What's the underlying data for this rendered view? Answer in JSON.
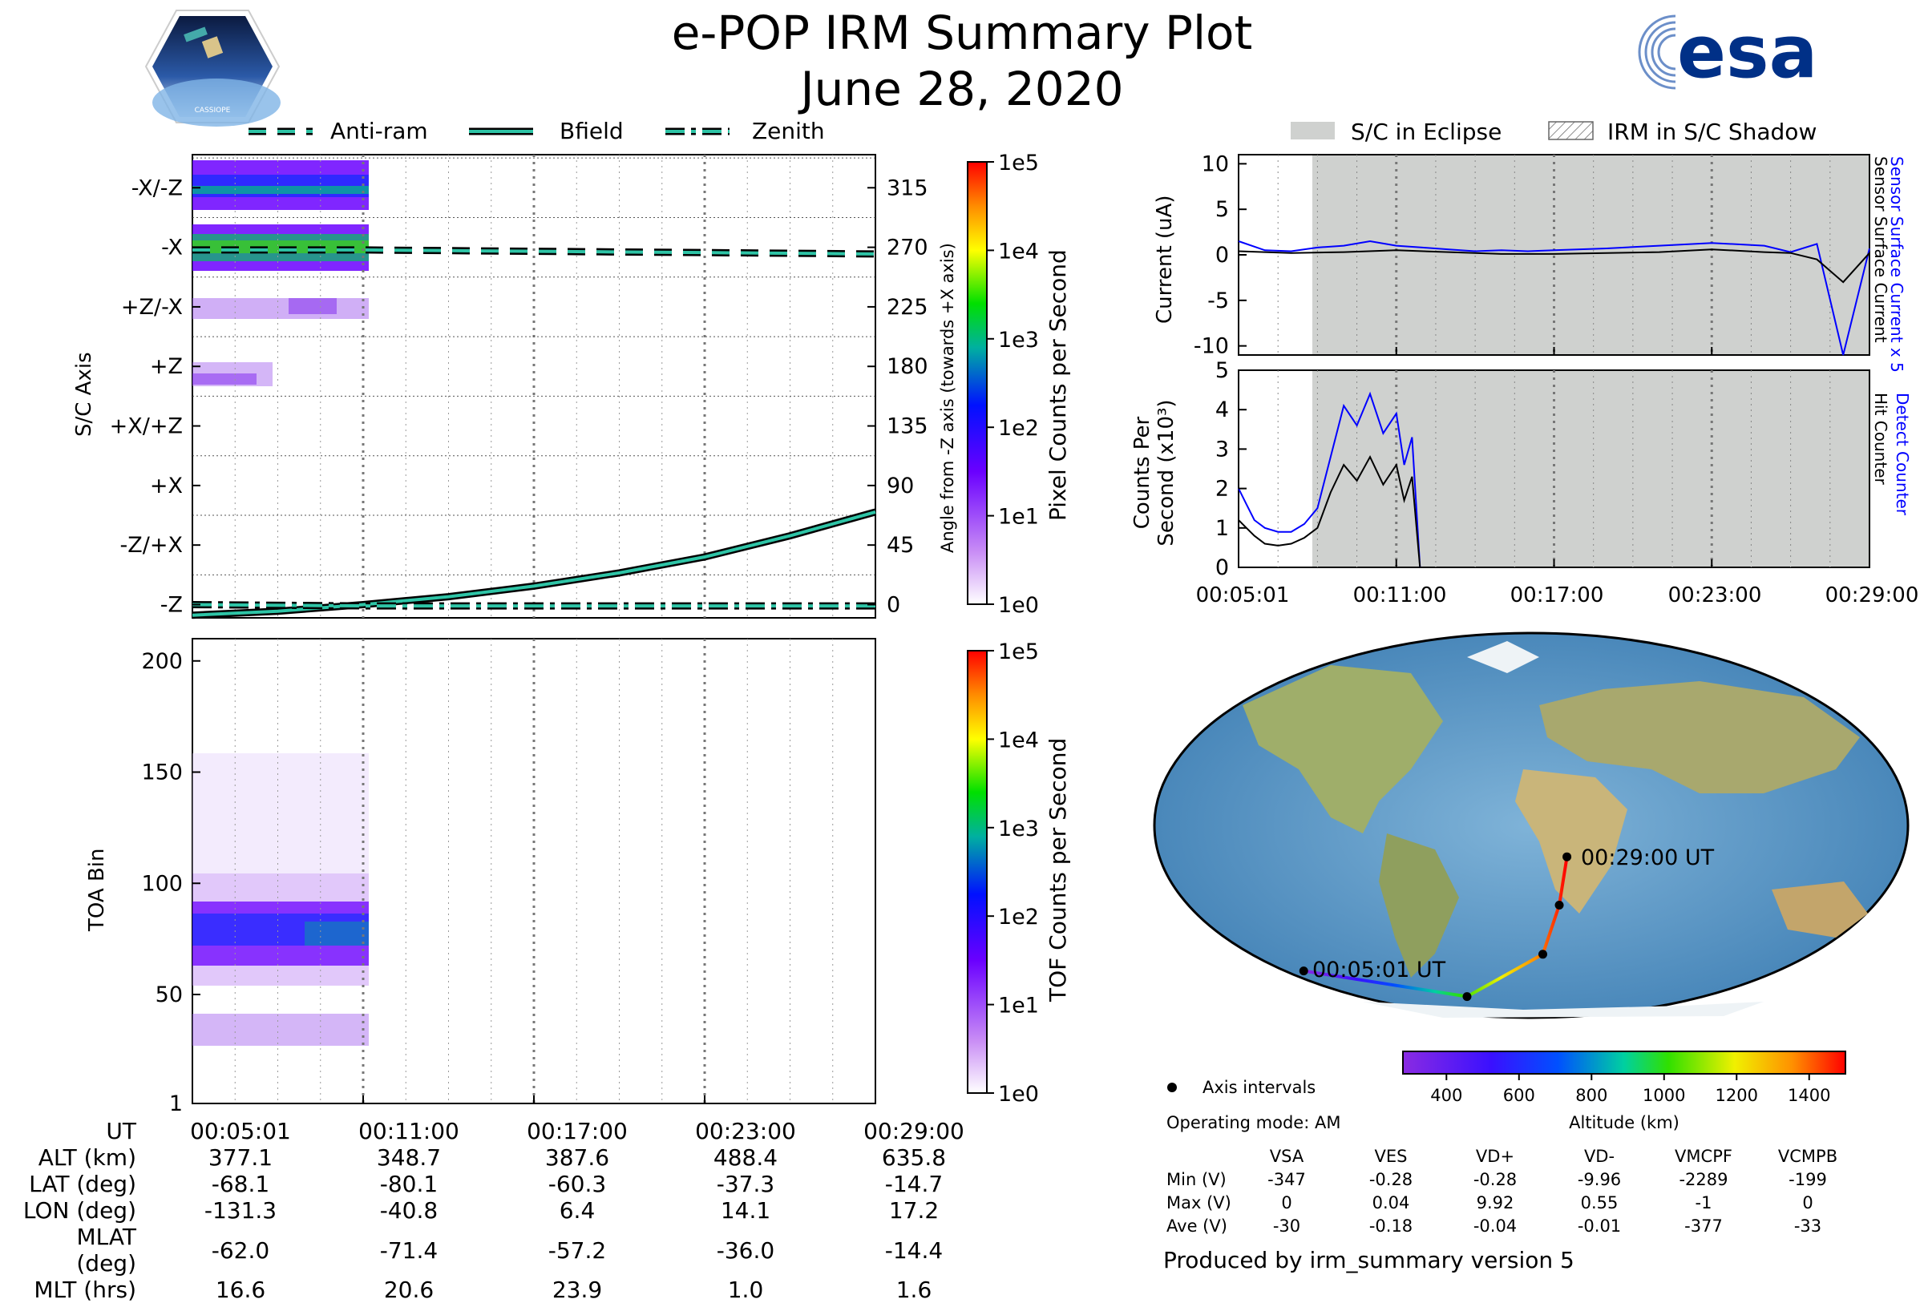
{
  "title": "e-POP IRM Summary Plot",
  "date": "June 28, 2020",
  "esa_logo_text": "esa",
  "cassiope_logo_text": "CASSIOPE",
  "chart_data": [
    {
      "id": "sc-axis",
      "type": "heatmap",
      "ylabel": "S/C Axis",
      "y_right_label": "Angle from -Z axis (towards +X axis)",
      "yticks_left": [
        "-X/-Z",
        "-X",
        "+Z/-X",
        "+Z",
        "+X/+Z",
        "+X",
        "-Z/+X",
        "-Z"
      ],
      "yticks_right": [
        "315",
        "270",
        "225",
        "180",
        "135",
        "90",
        "45",
        "0"
      ],
      "ylim": [
        -10,
        340
      ],
      "legend": [
        "Anti-ram",
        "Bfield",
        "Zenith"
      ],
      "colorbar_label": "Pixel Counts per Second",
      "colorbar_ticks": [
        "1e5",
        "1e4",
        "1e3",
        "1e2",
        "1e1",
        "1e0"
      ],
      "series": [
        {
          "name": "Anti-ram",
          "x_min": [
            0,
            6,
            12,
            18,
            24
          ],
          "values": [
            268,
            268,
            267,
            266,
            265
          ]
        },
        {
          "name": "Bfield",
          "x_min": [
            0,
            3,
            6,
            9,
            12,
            15,
            18,
            21,
            24
          ],
          "values": [
            -8,
            -5,
            0,
            6,
            14,
            24,
            36,
            52,
            70
          ]
        },
        {
          "name": "Zenith",
          "x_min": [
            0,
            6,
            12,
            18,
            24
          ],
          "values": [
            0,
            -1,
            -1,
            -1,
            -1
          ]
        }
      ]
    },
    {
      "id": "toa",
      "type": "heatmap",
      "ylabel": "TOA Bin",
      "yticks": [
        "200",
        "150",
        "100",
        "50",
        "1"
      ],
      "ylim": [
        1,
        210
      ],
      "colorbar_label": "TOF Counts per Second",
      "colorbar_ticks": [
        "1e5",
        "1e4",
        "1e3",
        "1e2",
        "1e1",
        "1e0"
      ]
    },
    {
      "id": "current",
      "type": "line",
      "ylabel": "Current (uA)",
      "yticks": [
        "10",
        "5",
        "0",
        "-5",
        "-10"
      ],
      "ylim": [
        -11,
        11
      ],
      "right_label_blue": "Sensor Surface Current x 5",
      "right_label_black": "Sensor Surface Current",
      "series": [
        {
          "name": "Sensor Surface Current x 5",
          "color": "#0000ff",
          "x_min": [
            0,
            1,
            2,
            3,
            4,
            5,
            6,
            7,
            8,
            9,
            10,
            11,
            12,
            14,
            16,
            18,
            20,
            21,
            22,
            23,
            24
          ],
          "values": [
            1.5,
            0.5,
            0.4,
            0.8,
            1.0,
            1.5,
            1.0,
            0.8,
            0.6,
            0.4,
            0.5,
            0.4,
            0.5,
            0.7,
            1.0,
            1.3,
            1.0,
            0.3,
            1.2,
            -11,
            0.7
          ]
        },
        {
          "name": "Sensor Surface Current",
          "color": "#000000",
          "x_min": [
            0,
            2,
            4,
            6,
            8,
            10,
            12,
            14,
            16,
            18,
            20,
            21,
            22,
            23,
            24
          ],
          "values": [
            0.4,
            0.2,
            0.3,
            0.5,
            0.3,
            0.1,
            0.1,
            0.2,
            0.3,
            0.6,
            0.3,
            0.2,
            -0.5,
            -3,
            0.2
          ]
        }
      ]
    },
    {
      "id": "counts",
      "type": "line",
      "ylabel": "Counts Per Second (x10³)",
      "yticks": [
        "5",
        "4",
        "3",
        "2",
        "1",
        "0"
      ],
      "ylim": [
        0,
        5
      ],
      "xticks": [
        "00:05:01",
        "00:11:00",
        "00:17:00",
        "00:23:00",
        "00:29:00"
      ],
      "right_label_blue": "Detect Counter",
      "right_label_black": "Hit Counter",
      "series": [
        {
          "name": "Detect Counter",
          "color": "#0000ff",
          "x_min": [
            0,
            0.3,
            0.6,
            1,
            1.5,
            2,
            2.5,
            3,
            3.5,
            4,
            4.5,
            5,
            5.5,
            6,
            6.3,
            6.6,
            6.9
          ],
          "values": [
            2.0,
            1.6,
            1.2,
            1.0,
            0.9,
            0.9,
            1.1,
            1.5,
            2.8,
            4.1,
            3.6,
            4.4,
            3.4,
            3.9,
            2.6,
            3.3,
            0
          ]
        },
        {
          "name": "Hit Counter",
          "color": "#000000",
          "x_min": [
            0,
            0.3,
            0.6,
            1,
            1.5,
            2,
            2.5,
            3,
            3.5,
            4,
            4.5,
            5,
            5.5,
            6,
            6.3,
            6.6,
            6.9
          ],
          "values": [
            1.2,
            1.0,
            0.8,
            0.6,
            0.55,
            0.6,
            0.75,
            1.0,
            1.9,
            2.6,
            2.2,
            2.8,
            2.1,
            2.6,
            1.7,
            2.3,
            0
          ]
        }
      ],
      "shaded_ranges_min": [
        [
          2.6,
          24
        ]
      ],
      "eclipse_legend": "S/C in Eclipse",
      "shadow_legend": "IRM in S/C Shadow"
    }
  ],
  "x_axis": {
    "ut_label": "UT",
    "ticks": [
      "00:05:01",
      "00:11:00",
      "00:17:00",
      "00:23:00",
      "00:29:00"
    ]
  },
  "ephemeris": {
    "rows": [
      {
        "label": "ALT (km)",
        "values": [
          "377.1",
          "348.7",
          "387.6",
          "488.4",
          "635.8"
        ]
      },
      {
        "label": "LAT (deg)",
        "values": [
          "-68.1",
          "-80.1",
          "-60.3",
          "-37.3",
          "-14.7"
        ]
      },
      {
        "label": "LON (deg)",
        "values": [
          "-131.3",
          "-40.8",
          "6.4",
          "14.1",
          "17.2"
        ]
      },
      {
        "label": "MLAT (deg)",
        "values": [
          "-62.0",
          "-71.4",
          "-57.2",
          "-36.0",
          "-14.4"
        ]
      },
      {
        "label": "MLT (hrs)",
        "values": [
          "16.6",
          "20.6",
          "23.9",
          "1.0",
          "1.6"
        ]
      }
    ]
  },
  "map": {
    "start_label": "00:05:01 UT",
    "end_label": "00:29:00 UT",
    "track": [
      {
        "lat": -68.1,
        "lon": -131.3
      },
      {
        "lat": -80.1,
        "lon": -40.8
      },
      {
        "lat": -60.3,
        "lon": 6.4
      },
      {
        "lat": -37.3,
        "lon": 14.1
      },
      {
        "lat": -14.7,
        "lon": 17.2
      }
    ],
    "axis_intervals_label": "Axis intervals",
    "altitude_label": "Altitude (km)",
    "altitude_ticks": [
      "400",
      "600",
      "800",
      "1000",
      "1200",
      "1400"
    ]
  },
  "operating_mode": "Operating mode: AM",
  "stats": {
    "columns": [
      "VSA",
      "VES",
      "VD+",
      "VD-",
      "VMCPF",
      "VCMPB"
    ],
    "rows": [
      {
        "label": "Min (V)",
        "values": [
          "-347",
          "-0.28",
          "-0.28",
          "-9.96",
          "-2289",
          "-199"
        ]
      },
      {
        "label": "Max (V)",
        "values": [
          "0",
          "0.04",
          "9.92",
          "0.55",
          "-1",
          "0"
        ]
      },
      {
        "label": "Ave (V)",
        "values": [
          "-30",
          "-0.18",
          "-0.04",
          "-0.01",
          "-377",
          "-33"
        ]
      }
    ]
  },
  "footer": "Produced by irm_summary version 5"
}
